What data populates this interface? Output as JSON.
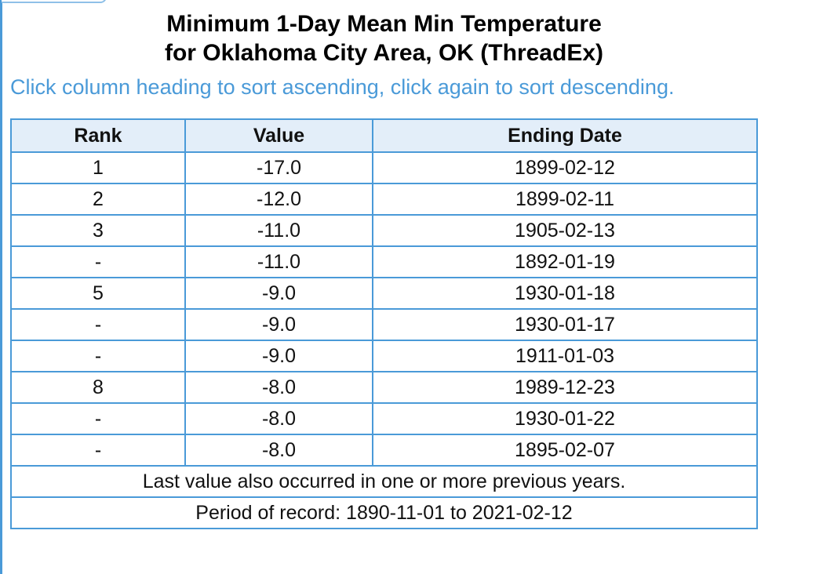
{
  "title": {
    "line1": "Minimum 1-Day Mean Min Temperature",
    "line2": "for Oklahoma City Area, OK (ThreadEx)"
  },
  "sort_hint": "Click column heading to sort ascending, click again to sort descending.",
  "table": {
    "headers": [
      "Rank",
      "Value",
      "Ending Date"
    ],
    "rows": [
      {
        "rank": "1",
        "value": "-17.0",
        "date": "1899-02-12"
      },
      {
        "rank": "2",
        "value": "-12.0",
        "date": "1899-02-11"
      },
      {
        "rank": "3",
        "value": "-11.0",
        "date": "1905-02-13"
      },
      {
        "rank": "-",
        "value": "-11.0",
        "date": "1892-01-19"
      },
      {
        "rank": "5",
        "value": "-9.0",
        "date": "1930-01-18"
      },
      {
        "rank": "-",
        "value": "-9.0",
        "date": "1930-01-17"
      },
      {
        "rank": "-",
        "value": "-9.0",
        "date": "1911-01-03"
      },
      {
        "rank": "8",
        "value": "-8.0",
        "date": "1989-12-23"
      },
      {
        "rank": "-",
        "value": "-8.0",
        "date": "1930-01-22"
      },
      {
        "rank": "-",
        "value": "-8.0",
        "date": "1895-02-07"
      }
    ],
    "footer_note": "Last value also occurred in one or more previous years.",
    "period": "Period of record: 1890-11-01 to 2021-02-12"
  },
  "colors": {
    "accent": "#4a9ad8",
    "header_bg": "#e3eef9"
  }
}
